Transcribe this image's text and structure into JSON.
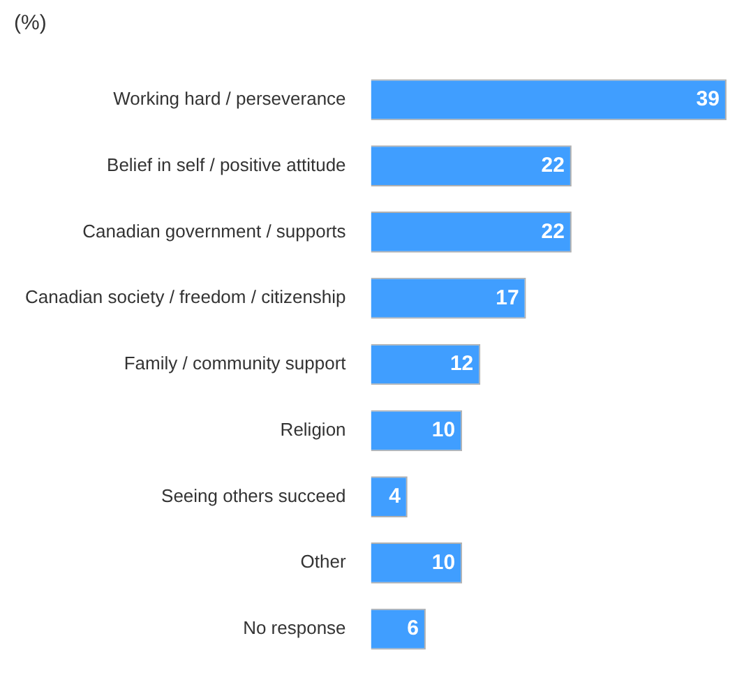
{
  "chart_data": {
    "type": "bar",
    "orientation": "horizontal",
    "annotations": [
      "(%)"
    ],
    "categories": [
      "Working hard / perseverance",
      "Belief in self / positive attitude",
      "Canadian government / supports",
      "Canadian society / freedom / citizenship",
      "Family / community support",
      "Religion",
      "Seeing others succeed",
      "Other",
      "No response"
    ],
    "values": [
      39,
      22,
      22,
      17,
      12,
      10,
      4,
      10,
      6
    ],
    "color": "#409eff",
    "data_labels": true,
    "legend": false
  }
}
